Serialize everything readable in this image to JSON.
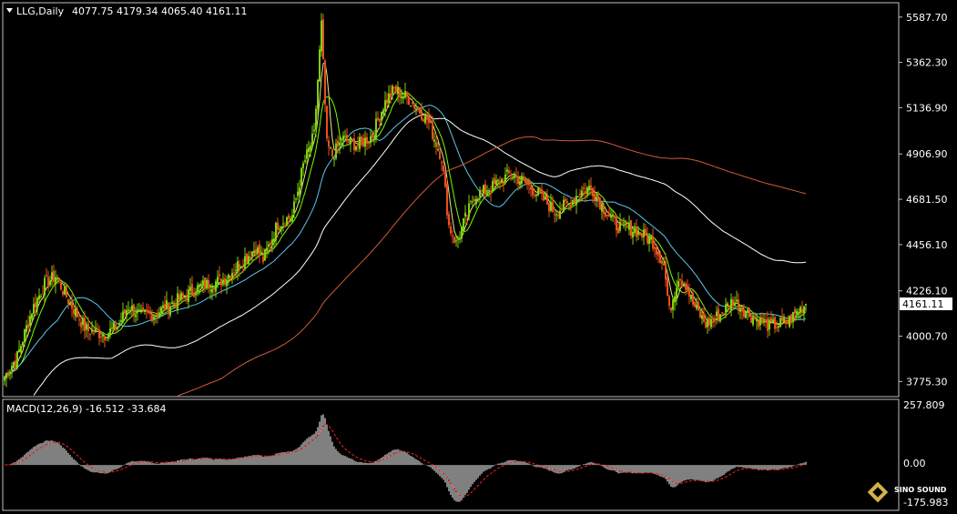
{
  "header": {
    "symbol": "LLG,Daily",
    "ohlc": "4077.75 4179.34 4065.40 4161.11"
  },
  "price_axis": {
    "ticks": [
      "5587.70",
      "5362.30",
      "5136.90",
      "4906.90",
      "4681.50",
      "4456.10",
      "4226.10",
      "4000.70",
      "3775.30"
    ],
    "current_price": "4161.11"
  },
  "macd": {
    "label": "MACD(12,26,9) -16.512 -33.684",
    "ticks": [
      "257.809",
      "0.00",
      "-175.983"
    ]
  },
  "watermark": {
    "brand": "SINO SOUND"
  },
  "colors": {
    "background": "#000000",
    "bull_candle": "#7fd10b",
    "bear_candle": "#e8501c",
    "ma_yellow": "#f0e68c",
    "ma_green": "#7cfc00",
    "ma_cyan": "#5bc8e8",
    "ma_white": "#ffffff",
    "ma_red": "#d05a3a",
    "macd_hist": "#ffffff",
    "macd_signal": "#ff2020"
  },
  "chart_data": {
    "type": "candlestick",
    "y_range": [
      3700,
      5650
    ],
    "keypoints": [
      [
        0,
        3800
      ],
      [
        7,
        3900
      ],
      [
        15,
        4130
      ],
      [
        22,
        4260
      ],
      [
        28,
        4300
      ],
      [
        35,
        4180
      ],
      [
        45,
        4030
      ],
      [
        55,
        4010
      ],
      [
        62,
        4050
      ],
      [
        68,
        4150
      ],
      [
        75,
        4100
      ],
      [
        82,
        4110
      ],
      [
        95,
        4180
      ],
      [
        108,
        4250
      ],
      [
        120,
        4280
      ],
      [
        132,
        4390
      ],
      [
        138,
        4440
      ],
      [
        142,
        4380
      ],
      [
        150,
        4560
      ],
      [
        158,
        4600
      ],
      [
        164,
        4850
      ],
      [
        170,
        5000
      ],
      [
        174,
        5550
      ],
      [
        177,
        4950
      ],
      [
        180,
        4900
      ],
      [
        186,
        4980
      ],
      [
        194,
        4950
      ],
      [
        202,
        5000
      ],
      [
        208,
        5150
      ],
      [
        214,
        5230
      ],
      [
        222,
        5180
      ],
      [
        232,
        5080
      ],
      [
        240,
        4890
      ],
      [
        244,
        4550
      ],
      [
        248,
        4460
      ],
      [
        252,
        4560
      ],
      [
        258,
        4700
      ],
      [
        266,
        4730
      ],
      [
        278,
        4810
      ],
      [
        286,
        4760
      ],
      [
        294,
        4700
      ],
      [
        302,
        4620
      ],
      [
        310,
        4660
      ],
      [
        316,
        4720
      ],
      [
        322,
        4740
      ],
      [
        328,
        4650
      ],
      [
        336,
        4550
      ],
      [
        346,
        4530
      ],
      [
        356,
        4470
      ],
      [
        362,
        4360
      ],
      [
        365,
        4120
      ],
      [
        370,
        4300
      ],
      [
        374,
        4260
      ],
      [
        378,
        4160
      ],
      [
        385,
        4060
      ],
      [
        393,
        4110
      ],
      [
        400,
        4180
      ],
      [
        410,
        4100
      ],
      [
        420,
        4050
      ],
      [
        430,
        4070
      ],
      [
        436,
        4130
      ],
      [
        440,
        4161
      ]
    ],
    "ma_lines": [
      {
        "period": 5,
        "color": "#f0e68c"
      },
      {
        "period": 10,
        "color": "#7cfc00"
      },
      {
        "period": 30,
        "color": "#5bc8e8"
      },
      {
        "period": 60,
        "color": "#ffffff"
      },
      {
        "period": 120,
        "color": "#d05a3a"
      }
    ],
    "macd_params": [
      12,
      26,
      9
    ],
    "macd_range": [
      -190,
      280
    ]
  }
}
